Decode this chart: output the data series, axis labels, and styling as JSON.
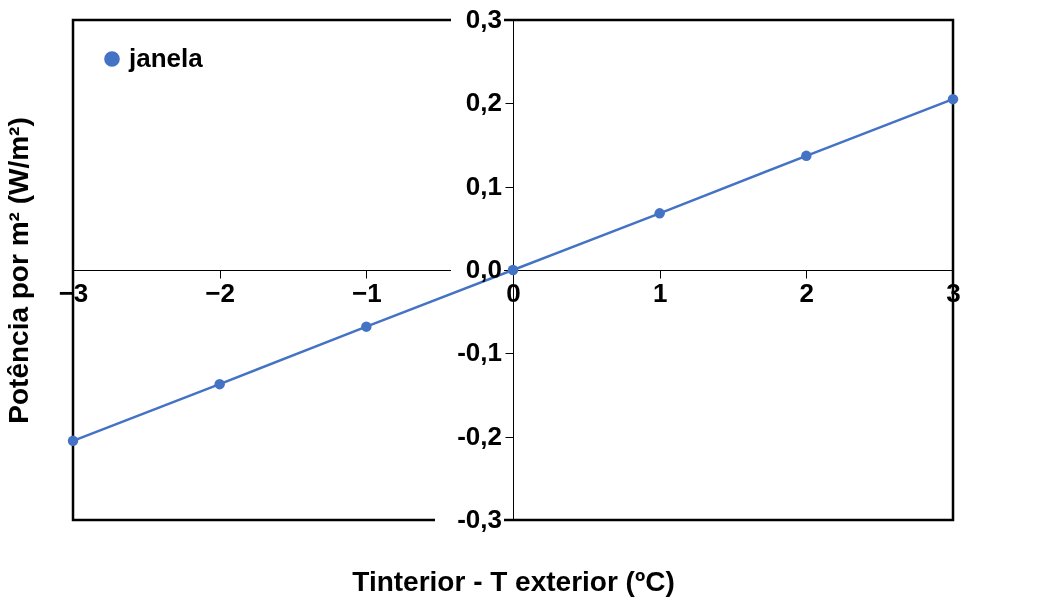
{
  "chart_data": {
    "type": "line",
    "xlabel": "Tinterior - T exterior (ºC)",
    "ylabel": "Potência por m² (W/m²)",
    "x": [
      -3,
      -2,
      -1,
      0,
      1,
      2,
      3
    ],
    "series": [
      {
        "name": "janela",
        "color": "#4472c4",
        "values": [
          -0.205,
          -0.137,
          -0.068,
          0,
          0.068,
          0.137,
          0.205
        ]
      }
    ],
    "xlim": [
      -3,
      3
    ],
    "xticks": [
      -3,
      -2,
      -1,
      0,
      1,
      2,
      3
    ],
    "ylim": [
      -0.3,
      0.3
    ],
    "yticks": [
      {
        "value": -0.3,
        "label": "-0,3"
      },
      {
        "value": -0.2,
        "label": "-0,2"
      },
      {
        "value": -0.1,
        "label": "-0,1"
      },
      {
        "value": 0,
        "label": "0,0"
      },
      {
        "value": 0.1,
        "label": "0,1"
      },
      {
        "value": 0.2,
        "label": "0,2"
      },
      {
        "value": 0.3,
        "label": "0,3"
      }
    ],
    "grid": false,
    "legend": "top left",
    "marker": "circle",
    "line_style": "solid"
  }
}
